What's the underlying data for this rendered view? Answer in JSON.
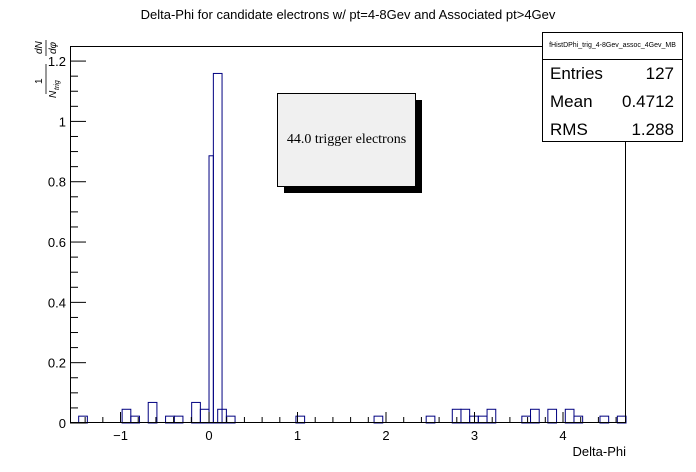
{
  "chart_data": {
    "type": "bar",
    "title": "Delta-Phi for candidate electrons w/ pt=4-8Gev and Associated pt>4Gev",
    "xlabel": "Delta-Phi",
    "ylabel": "1/N_trig dN/dφ",
    "xlim": [
      -1.571,
      4.712
    ],
    "ylim": [
      0,
      1.25
    ],
    "xticks": [
      "−1",
      "0",
      "1",
      "2",
      "3",
      "4"
    ],
    "yticks": [
      "0",
      "0.2",
      "0.4",
      "0.6",
      "0.8",
      "1",
      "1.2"
    ],
    "bins": [
      {
        "x": -1.473,
        "y": 0.0227
      },
      {
        "x": -0.982,
        "y": 0.0455
      },
      {
        "x": -0.884,
        "y": 0.0227
      },
      {
        "x": -0.687,
        "y": 0.0682
      },
      {
        "x": -0.491,
        "y": 0.0227
      },
      {
        "x": -0.393,
        "y": 0.0227
      },
      {
        "x": -0.196,
        "y": 0.0682
      },
      {
        "x": -0.098,
        "y": 0.0455
      },
      {
        "x": 0.0,
        "y": 0.886
      },
      {
        "x": 0.049,
        "y": 1.159
      },
      {
        "x": 0.098,
        "y": 0.0455
      },
      {
        "x": 0.196,
        "y": 0.0227
      },
      {
        "x": 0.982,
        "y": 0.0227
      },
      {
        "x": 1.865,
        "y": 0.0227
      },
      {
        "x": 2.454,
        "y": 0.0227
      },
      {
        "x": 2.749,
        "y": 0.0455
      },
      {
        "x": 2.847,
        "y": 0.0455
      },
      {
        "x": 2.945,
        "y": 0.0227
      },
      {
        "x": 3.043,
        "y": 0.0227
      },
      {
        "x": 3.142,
        "y": 0.0455
      },
      {
        "x": 3.535,
        "y": 0.0227
      },
      {
        "x": 3.633,
        "y": 0.0455
      },
      {
        "x": 3.829,
        "y": 0.0455
      },
      {
        "x": 4.026,
        "y": 0.0455
      },
      {
        "x": 4.124,
        "y": 0.0227
      },
      {
        "x": 4.418,
        "y": 0.0227
      },
      {
        "x": 4.614,
        "y": 0.0227
      }
    ],
    "bin_width": 0.0982,
    "line_color": "#000080",
    "grid": false,
    "stats_box": {
      "name": "fHistDPhi_trig_4-8Gev_assoc_4Gev_MB",
      "rows": [
        {
          "label": "Entries",
          "value": "127"
        },
        {
          "label": "Mean",
          "value": "0.4712"
        },
        {
          "label": "RMS",
          "value": "1.288"
        }
      ]
    },
    "annotation": "44.0 trigger electrons"
  }
}
